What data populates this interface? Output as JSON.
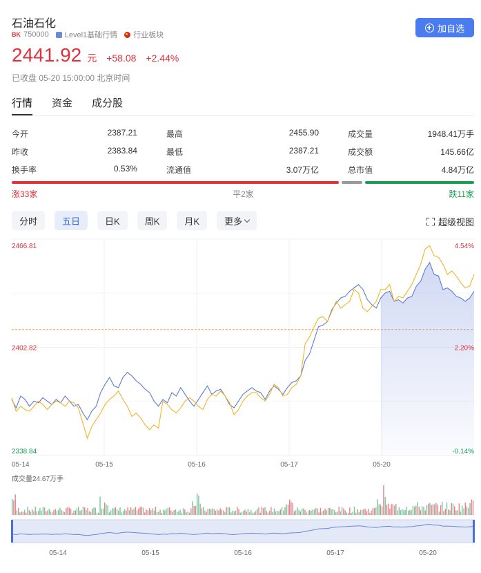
{
  "header": {
    "title": "石油石化",
    "bk_tag": "BK",
    "code": "750000",
    "level_label": "Level1基础行情",
    "sector_label": "行业板块"
  },
  "add_button": {
    "label": "加自选"
  },
  "quote": {
    "price": "2441.92",
    "unit": "元",
    "change": "+58.08",
    "change_pct": "+2.44%",
    "status": "已收盘 05-20 15:00:00 北京时间"
  },
  "tabs": [
    {
      "label": "行情",
      "active": true
    },
    {
      "label": "资金",
      "active": false
    },
    {
      "label": "成分股",
      "active": false
    }
  ],
  "stats": {
    "rows": [
      [
        {
          "label": "今开",
          "value": "2387.21",
          "color": "red"
        },
        {
          "label": "最高",
          "value": "2455.90",
          "color": "red"
        },
        {
          "label": "成交量",
          "value": "1948.41万手",
          "color": "normal"
        }
      ],
      [
        {
          "label": "昨收",
          "value": "2383.84",
          "color": "normal"
        },
        {
          "label": "最低",
          "value": "2387.21",
          "color": "red"
        },
        {
          "label": "成交额",
          "value": "145.66亿",
          "color": "normal"
        }
      ],
      [
        {
          "label": "换手率",
          "value": "0.53%",
          "color": "normal"
        },
        {
          "label": "流通值",
          "value": "3.07万亿",
          "color": "normal"
        },
        {
          "label": "总市值",
          "value": "4.84万亿",
          "color": "normal"
        }
      ]
    ]
  },
  "breadth": {
    "up_label": "涨33家",
    "flat_label": "平2家",
    "down_label": "跌11家",
    "up": 33,
    "flat": 2,
    "down": 11,
    "up_color": "#e0323c",
    "flat_color": "#999999",
    "down_color": "#1a9e55"
  },
  "periods": [
    {
      "label": "分时",
      "active": false
    },
    {
      "label": "五日",
      "active": true
    },
    {
      "label": "日K",
      "active": false
    },
    {
      "label": "周K",
      "active": false
    },
    {
      "label": "月K",
      "active": false
    },
    {
      "label": "更多",
      "active": false,
      "dropdown": true
    }
  ],
  "super_view_label": "超级视图",
  "chart_data": {
    "type": "line",
    "y_labels": {
      "top": "2466.81",
      "mid": "2402.82",
      "bottom": "2338.84"
    },
    "pct_labels": {
      "top": "4.54%",
      "mid": "2.20%",
      "bottom": "-0.14%"
    },
    "ylim": [
      2338.84,
      2466.81
    ],
    "prev_close": 2383.84,
    "days": [
      "05-14",
      "05-15",
      "05-16",
      "05-17",
      "05-20"
    ],
    "series": [
      {
        "color": "#5b7bd5",
        "values": [
          2372,
          2367,
          2374,
          2372,
          2368,
          2371,
          2370,
          2373,
          2371,
          2369,
          2372,
          2370,
          2374,
          2371,
          2368,
          2369,
          2364,
          2360,
          2365,
          2368,
          2376,
          2381,
          2385,
          2380,
          2379,
          2385,
          2388,
          2386,
          2383,
          2381,
          2378,
          2376,
          2371,
          2368,
          2372,
          2370,
          2376,
          2374,
          2379,
          2375,
          2371,
          2368,
          2372,
          2376,
          2380,
          2375,
          2377,
          2378,
          2374,
          2369,
          2367,
          2371,
          2375,
          2377,
          2379,
          2377,
          2376,
          2372,
          2377,
          2380,
          2378,
          2375,
          2379,
          2382,
          2383,
          2386,
          2395,
          2399,
          2407,
          2415,
          2416,
          2418,
          2425,
          2429,
          2432,
          2433,
          2436,
          2438,
          2440,
          2437,
          2431,
          2428,
          2426,
          2432,
          2435,
          2436,
          2430,
          2431,
          2429,
          2432,
          2433,
          2439,
          2442,
          2449,
          2453,
          2446,
          2445,
          2437,
          2438,
          2436,
          2433,
          2432,
          2430,
          2432,
          2436
        ]
      },
      {
        "color": "#f0b429",
        "values": [
          2373,
          2365,
          2368,
          2366,
          2365,
          2368,
          2371,
          2369,
          2366,
          2369,
          2371,
          2370,
          2368,
          2371,
          2370,
          2367,
          2358,
          2349,
          2356,
          2360,
          2364,
          2369,
          2372,
          2374,
          2377,
          2372,
          2368,
          2362,
          2364,
          2361,
          2357,
          2354,
          2357,
          2355,
          2371,
          2369,
          2366,
          2364,
          2367,
          2371,
          2373,
          2371,
          2368,
          2366,
          2372,
          2375,
          2374,
          2377,
          2374,
          2370,
          2363,
          2366,
          2371,
          2374,
          2376,
          2376,
          2373,
          2371,
          2375,
          2381,
          2379,
          2374,
          2375,
          2379,
          2381,
          2386,
          2405,
          2409,
          2415,
          2420,
          2421,
          2418,
          2424,
          2430,
          2426,
          2428,
          2430,
          2437,
          2435,
          2426,
          2424,
          2427,
          2430,
          2437,
          2437,
          2440,
          2430,
          2433,
          2432,
          2436,
          2440,
          2446,
          2452,
          2461,
          2463,
          2457,
          2456,
          2452,
          2446,
          2448,
          2445,
          2441,
          2438,
          2439,
          2446
        ]
      }
    ],
    "volume": {
      "label": "成交量24.67万手"
    },
    "navigator_days": [
      "05-14",
      "05-15",
      "05-16",
      "05-17",
      "05-20"
    ]
  }
}
